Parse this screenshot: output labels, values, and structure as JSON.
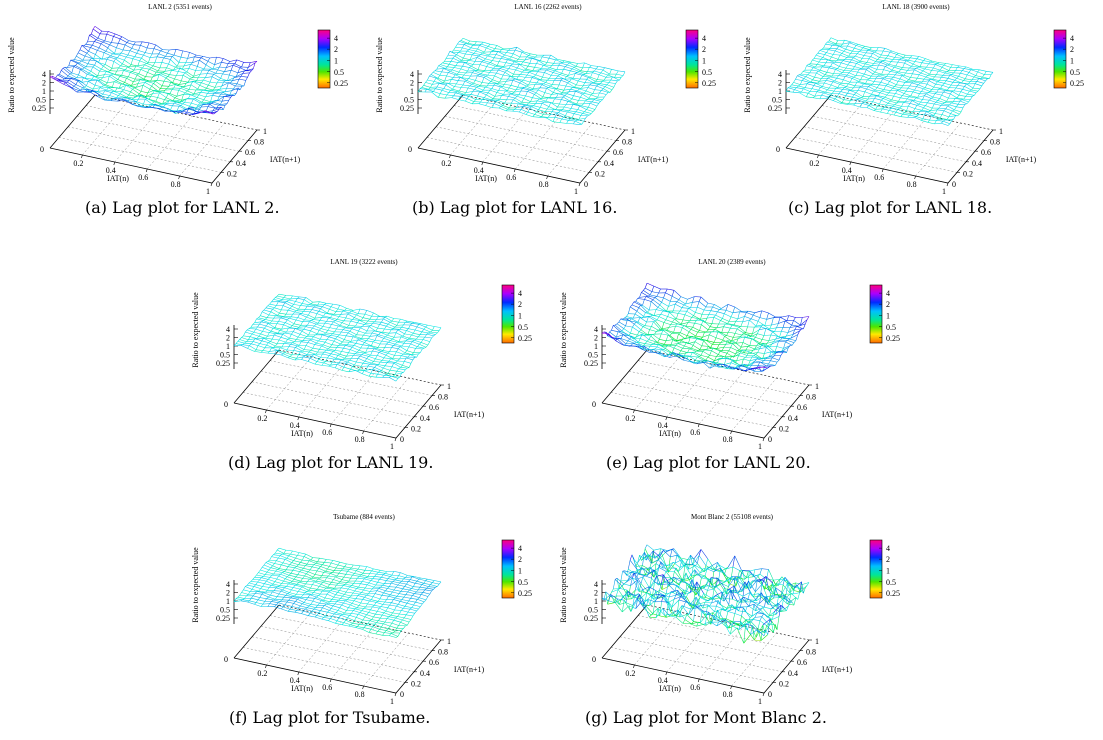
{
  "chart_data": [
    {
      "type": "surface",
      "title": "LANL 2 (5351 events)",
      "caption": "(a) Lag plot for LANL 2.",
      "xlabel": "IAT(n)",
      "ylabel": "IAT(n+1)",
      "zlabel": "Ratio to expected value",
      "x_ticks": [
        "0",
        "0.2",
        "0.4",
        "0.6",
        "0.8",
        "1"
      ],
      "y_ticks": [
        "0",
        "0.2",
        "0.4",
        "0.6",
        "0.8",
        "1"
      ],
      "z_ticks": [
        "4",
        "2",
        "1",
        "0.5",
        "0.25"
      ],
      "colorbar_ticks": [
        "4",
        "2",
        "1",
        "0.5",
        "0.25"
      ],
      "z_scale": "log2",
      "zlim": [
        0.25,
        4
      ],
      "surface_shape": "bowl",
      "noise": 0.5,
      "level": 1.0
    },
    {
      "type": "surface",
      "title": "LANL 16 (2262 events)",
      "caption": "(b) Lag plot for LANL 16.",
      "xlabel": "IAT(n)",
      "ylabel": "IAT(n+1)",
      "zlabel": "Ratio to expected value",
      "x_ticks": [
        "0",
        "0.2",
        "0.4",
        "0.6",
        "0.8",
        "1"
      ],
      "y_ticks": [
        "0",
        "0.2",
        "0.4",
        "0.6",
        "0.8",
        "1"
      ],
      "z_ticks": [
        "4",
        "2",
        "1",
        "0.5",
        "0.25"
      ],
      "colorbar_ticks": [
        "4",
        "2",
        "1",
        "0.5",
        "0.25"
      ],
      "z_scale": "log2",
      "zlim": [
        0.25,
        4
      ],
      "surface_shape": "flat",
      "noise": 0.35,
      "level": 1.0
    },
    {
      "type": "surface",
      "title": "LANL 18 (3900 events)",
      "caption": "(c) Lag plot for LANL 18.",
      "xlabel": "IAT(n)",
      "ylabel": "IAT(n+1)",
      "zlabel": "Ratio to expected value",
      "x_ticks": [
        "0",
        "0.2",
        "0.4",
        "0.6",
        "0.8",
        "1"
      ],
      "y_ticks": [
        "0",
        "0.2",
        "0.4",
        "0.6",
        "0.8",
        "1"
      ],
      "z_ticks": [
        "4",
        "2",
        "1",
        "0.5",
        "0.25"
      ],
      "colorbar_ticks": [
        "4",
        "2",
        "1",
        "0.5",
        "0.25"
      ],
      "z_scale": "log2",
      "zlim": [
        0.25,
        4
      ],
      "surface_shape": "flat",
      "noise": 0.3,
      "level": 1.0
    },
    {
      "type": "surface",
      "title": "LANL 19 (3222 events)",
      "caption": "(d) Lag plot for LANL 19.",
      "xlabel": "IAT(n)",
      "ylabel": "IAT(n+1)",
      "zlabel": "Ratio to expected value",
      "x_ticks": [
        "0",
        "0.2",
        "0.4",
        "0.6",
        "0.8",
        "1"
      ],
      "y_ticks": [
        "0",
        "0.2",
        "0.4",
        "0.6",
        "0.8",
        "1"
      ],
      "z_ticks": [
        "4",
        "2",
        "1",
        "0.5",
        "0.25"
      ],
      "colorbar_ticks": [
        "4",
        "2",
        "1",
        "0.5",
        "0.25"
      ],
      "z_scale": "log2",
      "zlim": [
        0.25,
        4
      ],
      "surface_shape": "flat",
      "noise": 0.3,
      "level": 1.0
    },
    {
      "type": "surface",
      "title": "LANL 20 (2389 events)",
      "caption": "(e) Lag plot for LANL 20.",
      "xlabel": "IAT(n)",
      "ylabel": "IAT(n+1)",
      "zlabel": "Ratio to expected value",
      "x_ticks": [
        "0",
        "0.2",
        "0.4",
        "0.6",
        "0.8",
        "1"
      ],
      "y_ticks": [
        "0",
        "0.2",
        "0.4",
        "0.6",
        "0.8",
        "1"
      ],
      "z_ticks": [
        "4",
        "2",
        "1",
        "0.5",
        "0.25"
      ],
      "colorbar_ticks": [
        "4",
        "2",
        "1",
        "0.5",
        "0.25"
      ],
      "z_scale": "log2",
      "zlim": [
        0.25,
        4
      ],
      "surface_shape": "bowl",
      "noise": 0.6,
      "level": 0.9
    },
    {
      "type": "surface",
      "title": "Tsubame (884 events)",
      "caption": "(f) Lag plot for Tsubame.",
      "xlabel": "IAT(n)",
      "ylabel": "IAT(n+1)",
      "zlabel": "Ratio to expected value",
      "x_ticks": [
        "0",
        "0.2",
        "0.4",
        "0.6",
        "0.8",
        "1"
      ],
      "y_ticks": [
        "0",
        "0.2",
        "0.4",
        "0.6",
        "0.8",
        "1"
      ],
      "z_ticks": [
        "4",
        "2",
        "1",
        "0.5",
        "0.25"
      ],
      "colorbar_ticks": [
        "4",
        "2",
        "1",
        "0.5",
        "0.25"
      ],
      "z_scale": "log2",
      "zlim": [
        0.25,
        4
      ],
      "surface_shape": "smooth",
      "noise": 0.2,
      "level": 1.0
    },
    {
      "type": "surface",
      "title": "Mont Blanc 2 (55108 events)",
      "caption": "(g) Lag plot for Mont Blanc 2.",
      "xlabel": "IAT(n)",
      "ylabel": "IAT(n+1)",
      "zlabel": "Ratio to expected value",
      "x_ticks": [
        "0",
        "0.2",
        "0.4",
        "0.6",
        "0.8",
        "1"
      ],
      "y_ticks": [
        "0",
        "0.2",
        "0.4",
        "0.6",
        "0.8",
        "1"
      ],
      "z_ticks": [
        "4",
        "2",
        "1",
        "0.5",
        "0.25"
      ],
      "colorbar_ticks": [
        "4",
        "2",
        "1",
        "0.5",
        "0.25"
      ],
      "z_scale": "log2",
      "zlim": [
        0.25,
        4
      ],
      "surface_shape": "spiky",
      "noise": 1.1,
      "level": 1.0
    }
  ]
}
